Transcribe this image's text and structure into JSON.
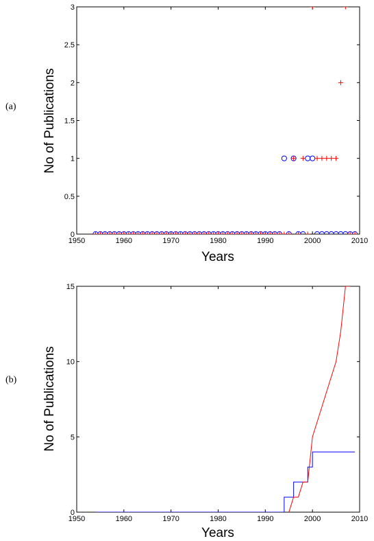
{
  "chart_data": [
    {
      "type": "scatter",
      "panel_label": "(a)",
      "xlabel": "Years",
      "ylabel": "No of Publications",
      "xlim": [
        1950,
        2010
      ],
      "ylim": [
        0,
        3
      ],
      "xticks": [
        "1950",
        "1960",
        "1970",
        "1980",
        "1990",
        "2000",
        "2010"
      ],
      "yticks": [
        "0",
        "0.5",
        "1",
        "1.5",
        "2",
        "2.5",
        "3"
      ],
      "grid": false,
      "series": [
        {
          "marker": "circle",
          "color": "#0000ff",
          "x": [
            1954,
            1955,
            1956,
            1957,
            1958,
            1959,
            1960,
            1961,
            1962,
            1963,
            1964,
            1965,
            1966,
            1967,
            1968,
            1969,
            1970,
            1971,
            1972,
            1973,
            1974,
            1975,
            1976,
            1977,
            1978,
            1979,
            1980,
            1981,
            1982,
            1983,
            1984,
            1985,
            1986,
            1987,
            1988,
            1989,
            1990,
            1991,
            1992,
            1993,
            1994,
            1995,
            1996,
            1997,
            1998,
            1999,
            2000,
            2001,
            2002,
            2003,
            2004,
            2005,
            2006,
            2007,
            2008,
            2009
          ],
          "y": [
            0,
            0,
            0,
            0,
            0,
            0,
            0,
            0,
            0,
            0,
            0,
            0,
            0,
            0,
            0,
            0,
            0,
            0,
            0,
            0,
            0,
            0,
            0,
            0,
            0,
            0,
            0,
            0,
            0,
            0,
            0,
            0,
            0,
            0,
            0,
            0,
            0,
            0,
            0,
            0,
            1,
            0,
            1,
            0,
            0,
            1,
            1,
            0,
            0,
            0,
            0,
            0,
            0,
            0,
            0,
            0
          ]
        },
        {
          "marker": "plus",
          "color": "#ff0000",
          "x": [
            1954,
            1955,
            1956,
            1957,
            1958,
            1959,
            1960,
            1961,
            1962,
            1963,
            1964,
            1965,
            1966,
            1967,
            1968,
            1969,
            1970,
            1971,
            1972,
            1973,
            1974,
            1975,
            1976,
            1977,
            1978,
            1979,
            1980,
            1981,
            1982,
            1983,
            1984,
            1985,
            1986,
            1987,
            1988,
            1989,
            1990,
            1991,
            1992,
            1993,
            1994,
            1995,
            1996,
            1997,
            1998,
            1999,
            2000,
            2001,
            2002,
            2003,
            2004,
            2005,
            2006,
            2007,
            2008,
            2009
          ],
          "y": [
            0,
            0,
            0,
            0,
            0,
            0,
            0,
            0,
            0,
            0,
            0,
            0,
            0,
            0,
            0,
            0,
            0,
            0,
            0,
            0,
            0,
            0,
            0,
            0,
            0,
            0,
            0,
            0,
            0,
            0,
            0,
            0,
            0,
            0,
            0,
            0,
            0,
            0,
            0,
            0,
            0,
            0,
            1,
            0,
            1,
            0,
            3,
            1,
            1,
            1,
            1,
            1,
            2,
            3,
            0,
            0
          ]
        }
      ]
    },
    {
      "type": "line",
      "panel_label": "(b)",
      "xlabel": "Years",
      "ylabel": "No of Publications",
      "xlim": [
        1950,
        2010
      ],
      "ylim": [
        0,
        15
      ],
      "xticks": [
        "1950",
        "1960",
        "1970",
        "1980",
        "1990",
        "2000",
        "2010"
      ],
      "yticks": [
        "0",
        "5",
        "10",
        "15"
      ],
      "grid": false,
      "series": [
        {
          "color": "#0000ff",
          "step": true,
          "x": [
            1954,
            1955,
            1956,
            1957,
            1958,
            1959,
            1960,
            1961,
            1962,
            1963,
            1964,
            1965,
            1966,
            1967,
            1968,
            1969,
            1970,
            1971,
            1972,
            1973,
            1974,
            1975,
            1976,
            1977,
            1978,
            1979,
            1980,
            1981,
            1982,
            1983,
            1984,
            1985,
            1986,
            1987,
            1988,
            1989,
            1990,
            1991,
            1992,
            1993,
            1994,
            1995,
            1996,
            1997,
            1998,
            1999,
            2000,
            2001,
            2002,
            2003,
            2004,
            2005,
            2006,
            2007,
            2008,
            2009
          ],
          "y": [
            0,
            0,
            0,
            0,
            0,
            0,
            0,
            0,
            0,
            0,
            0,
            0,
            0,
            0,
            0,
            0,
            0,
            0,
            0,
            0,
            0,
            0,
            0,
            0,
            0,
            0,
            0,
            0,
            0,
            0,
            0,
            0,
            0,
            0,
            0,
            0,
            0,
            0,
            0,
            0,
            1,
            1,
            2,
            2,
            2,
            3,
            4,
            4,
            4,
            4,
            4,
            4,
            4,
            4,
            4,
            4
          ]
        },
        {
          "color": "#ff0000",
          "step": false,
          "x": [
            1994,
            1995,
            1996,
            1997,
            1998,
            1999,
            2000,
            2001,
            2002,
            2003,
            2004,
            2005,
            2006,
            2007,
            2008
          ],
          "y": [
            -2,
            0,
            1,
            1,
            2,
            2,
            5,
            6,
            7,
            8,
            9,
            10,
            12,
            15,
            15
          ]
        }
      ]
    }
  ]
}
